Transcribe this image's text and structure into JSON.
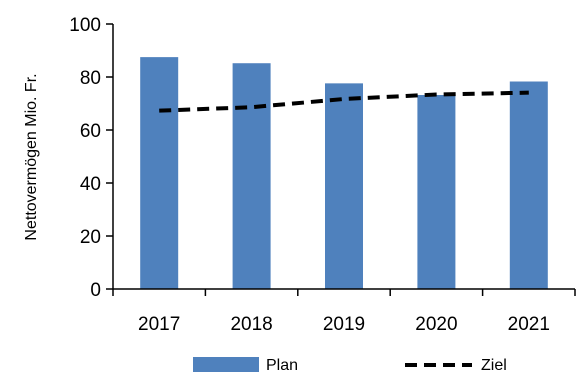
{
  "chart_data": {
    "type": "bar",
    "categories": [
      "2017",
      "2018",
      "2019",
      "2020",
      "2021"
    ],
    "ylabel": "Nettovermögen Mio. Fr.",
    "xlabel": "",
    "ylim": [
      0,
      100
    ],
    "yticks": [
      0,
      20,
      40,
      60,
      80,
      100
    ],
    "grid": false,
    "legend_position": "bottom",
    "series": [
      {
        "name": "Plan",
        "type": "bar",
        "color": "#4F81BD",
        "values": [
          87.5,
          85.2,
          77.6,
          73.2,
          78.3
        ]
      },
      {
        "name": "Ziel",
        "type": "line",
        "style": "dashed",
        "color": "#000000",
        "values": [
          67.3,
          68.6,
          71.7,
          73.4,
          74.1
        ]
      }
    ]
  }
}
